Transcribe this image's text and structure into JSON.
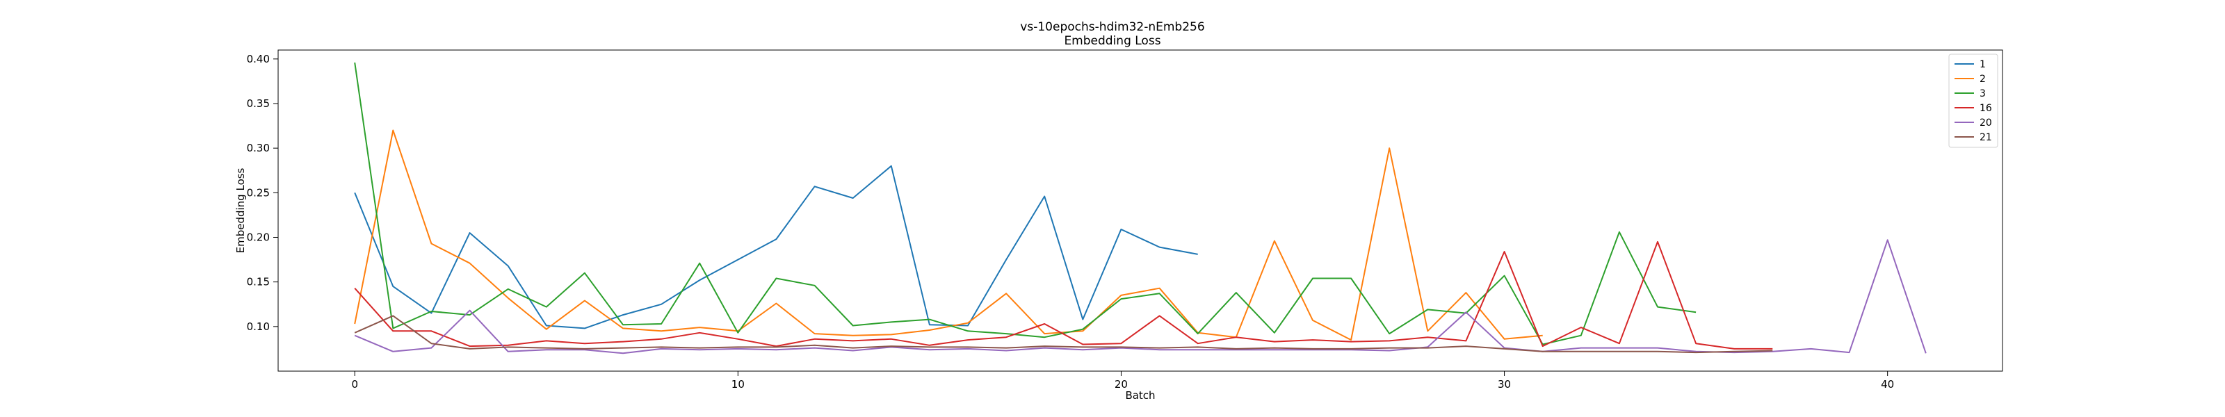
{
  "chart_data": {
    "type": "line",
    "title": "vs-10epochs-hdim32-nEmb256",
    "subtitle": "Embedding Loss",
    "xlabel": "Batch",
    "ylabel": "Embedding Loss",
    "xlim": [
      -2,
      43
    ],
    "ylim": [
      0.05,
      0.41
    ],
    "xticks": [
      0,
      10,
      20,
      30,
      40
    ],
    "yticks": [
      0.1,
      0.15,
      0.2,
      0.25,
      0.3,
      0.35,
      0.4
    ],
    "grid": false,
    "legend_position": "top-right",
    "series": [
      {
        "name": "1",
        "color": "#1f77b4",
        "x": [
          0,
          1,
          2,
          3,
          4,
          5,
          6,
          7,
          8,
          9,
          10,
          11,
          12,
          13,
          14,
          15,
          16,
          17,
          18,
          19,
          20,
          21,
          22
        ],
        "values": [
          0.25,
          0.145,
          0.115,
          0.205,
          0.168,
          0.101,
          0.098,
          0.113,
          0.125,
          0.152,
          0.175,
          0.198,
          0.257,
          0.244,
          0.28,
          0.102,
          0.101,
          0.175,
          0.246,
          0.108,
          0.209,
          0.189,
          0.181
        ]
      },
      {
        "name": "2",
        "color": "#ff7f0e",
        "x": [
          0,
          1,
          2,
          3,
          4,
          5,
          6,
          7,
          8,
          9,
          10,
          11,
          12,
          13,
          14,
          15,
          16,
          17,
          18,
          19,
          20,
          21,
          22,
          23,
          24,
          25,
          26,
          27,
          28,
          29,
          30,
          31
        ],
        "values": [
          0.103,
          0.32,
          0.193,
          0.171,
          0.132,
          0.097,
          0.129,
          0.098,
          0.095,
          0.099,
          0.095,
          0.126,
          0.092,
          0.09,
          0.091,
          0.096,
          0.104,
          0.137,
          0.092,
          0.095,
          0.135,
          0.143,
          0.093,
          0.088,
          0.196,
          0.107,
          0.085,
          0.3,
          0.095,
          0.138,
          0.086,
          0.09
        ]
      },
      {
        "name": "3",
        "color": "#2ca02c",
        "x": [
          0,
          1,
          2,
          3,
          4,
          5,
          6,
          7,
          8,
          9,
          10,
          11,
          12,
          13,
          14,
          15,
          16,
          17,
          18,
          19,
          20,
          21,
          22,
          23,
          24,
          25,
          26,
          27,
          28,
          29,
          30,
          31,
          32,
          33,
          34,
          35
        ],
        "values": [
          0.396,
          0.098,
          0.117,
          0.113,
          0.142,
          0.122,
          0.16,
          0.102,
          0.103,
          0.171,
          0.093,
          0.154,
          0.146,
          0.101,
          0.105,
          0.108,
          0.095,
          0.092,
          0.088,
          0.097,
          0.131,
          0.137,
          0.092,
          0.138,
          0.093,
          0.154,
          0.154,
          0.092,
          0.119,
          0.115,
          0.157,
          0.08,
          0.09,
          0.206,
          0.122,
          0.116
        ]
      },
      {
        "name": "16",
        "color": "#d62728",
        "x": [
          0,
          1,
          2,
          3,
          4,
          5,
          6,
          7,
          8,
          9,
          10,
          11,
          12,
          13,
          14,
          15,
          16,
          17,
          18,
          19,
          20,
          21,
          22,
          23,
          24,
          25,
          26,
          27,
          28,
          29,
          30,
          31,
          32,
          33,
          34,
          35,
          36,
          37
        ],
        "values": [
          0.143,
          0.095,
          0.095,
          0.078,
          0.079,
          0.084,
          0.081,
          0.083,
          0.086,
          0.093,
          0.086,
          0.078,
          0.086,
          0.084,
          0.086,
          0.079,
          0.085,
          0.088,
          0.103,
          0.08,
          0.081,
          0.112,
          0.081,
          0.088,
          0.083,
          0.085,
          0.083,
          0.084,
          0.088,
          0.084,
          0.184,
          0.078,
          0.099,
          0.081,
          0.195,
          0.081,
          0.075,
          0.075
        ]
      },
      {
        "name": "20",
        "color": "#9467bd",
        "x": [
          0,
          1,
          2,
          3,
          4,
          5,
          6,
          7,
          8,
          9,
          10,
          11,
          12,
          13,
          14,
          15,
          16,
          17,
          18,
          19,
          20,
          21,
          22,
          23,
          24,
          25,
          26,
          27,
          28,
          29,
          30,
          31,
          32,
          33,
          34,
          35,
          36,
          37,
          38,
          39,
          40,
          41
        ],
        "values": [
          0.09,
          0.072,
          0.076,
          0.118,
          0.072,
          0.074,
          0.074,
          0.07,
          0.075,
          0.074,
          0.075,
          0.074,
          0.076,
          0.073,
          0.077,
          0.074,
          0.075,
          0.073,
          0.076,
          0.074,
          0.076,
          0.074,
          0.074,
          0.074,
          0.074,
          0.074,
          0.074,
          0.073,
          0.077,
          0.116,
          0.076,
          0.072,
          0.076,
          0.076,
          0.076,
          0.072,
          0.071,
          0.072,
          0.075,
          0.071,
          0.197,
          0.07
        ]
      },
      {
        "name": "21",
        "color": "#8c564b",
        "x": [
          0,
          1,
          2,
          3,
          4,
          5,
          6,
          7,
          8,
          9,
          10,
          11,
          12,
          13,
          14,
          15,
          16,
          17,
          18,
          19,
          20,
          21,
          22,
          23,
          24,
          25,
          26,
          27,
          28,
          29,
          30,
          31,
          32,
          33,
          34,
          35,
          36,
          37
        ],
        "values": [
          0.093,
          0.112,
          0.081,
          0.075,
          0.077,
          0.076,
          0.075,
          0.076,
          0.077,
          0.076,
          0.077,
          0.077,
          0.079,
          0.076,
          0.078,
          0.077,
          0.077,
          0.076,
          0.078,
          0.077,
          0.077,
          0.076,
          0.077,
          0.075,
          0.076,
          0.075,
          0.075,
          0.076,
          0.076,
          0.078,
          0.075,
          0.072,
          0.072,
          0.072,
          0.072,
          0.071,
          0.072,
          0.073
        ]
      }
    ]
  }
}
